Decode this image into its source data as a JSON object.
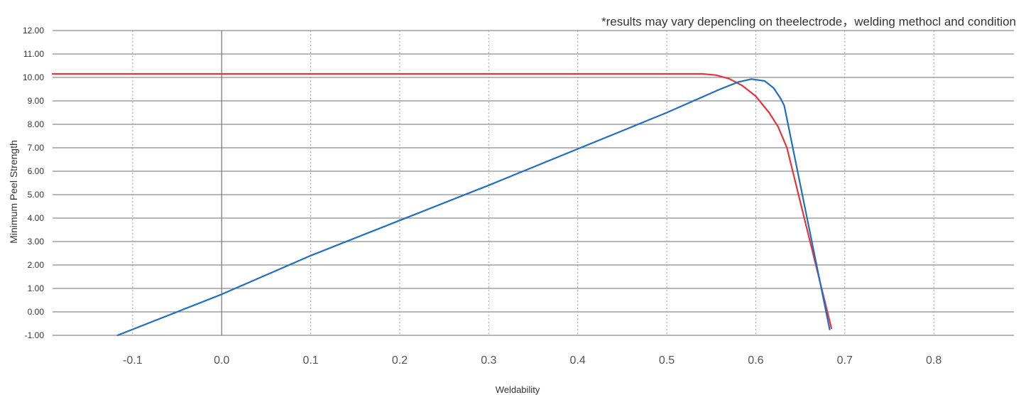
{
  "chart_data": {
    "type": "line",
    "title": "",
    "annotation": "*results may vary depencling on theelectrode，welding methocl and condition",
    "xlabel": "Weldability",
    "ylabel": "Minimum Peel Strength",
    "xlim": [
      -0.19,
      0.89
    ],
    "ylim": [
      -1.0,
      12.0
    ],
    "xticks": [
      "-0.1",
      "0.0",
      "0.1",
      "0.2",
      "0.3",
      "0.4",
      "0.5",
      "0.6",
      "0.7",
      "0.8"
    ],
    "xtick_values": [
      -0.1,
      0.0,
      0.1,
      0.2,
      0.3,
      0.4,
      0.5,
      0.6,
      0.7,
      0.8
    ],
    "yticks": [
      "12.00",
      "11.00",
      "10.00",
      "9.00",
      "8.00",
      "7.00",
      "6.00",
      "5.00",
      "4.00",
      "3.00",
      "2.00",
      "1.00",
      "0.00",
      "-1.00"
    ],
    "ytick_values": [
      12,
      11,
      10,
      9,
      8,
      7,
      6,
      5,
      4,
      3,
      2,
      1,
      0,
      -1
    ],
    "grid": true,
    "series": [
      {
        "color": "#e8333a",
        "x": [
          -0.19,
          0.4,
          0.54,
          0.555,
          0.57,
          0.585,
          0.6,
          0.615,
          0.625,
          0.635,
          0.685
        ],
        "y": [
          10.15,
          10.15,
          10.15,
          10.1,
          9.95,
          9.65,
          9.2,
          8.5,
          7.9,
          7.0,
          -0.7
        ]
      },
      {
        "color": "#1f6fc2",
        "x": [
          -0.117,
          0.0,
          0.1,
          0.2,
          0.3,
          0.4,
          0.5,
          0.56,
          0.58,
          0.595,
          0.61,
          0.62,
          0.628,
          0.632,
          0.683
        ],
        "y": [
          -1.0,
          0.75,
          2.4,
          3.9,
          5.4,
          6.95,
          8.5,
          9.5,
          9.8,
          9.93,
          9.85,
          9.55,
          9.1,
          8.8,
          -0.75
        ]
      }
    ]
  }
}
